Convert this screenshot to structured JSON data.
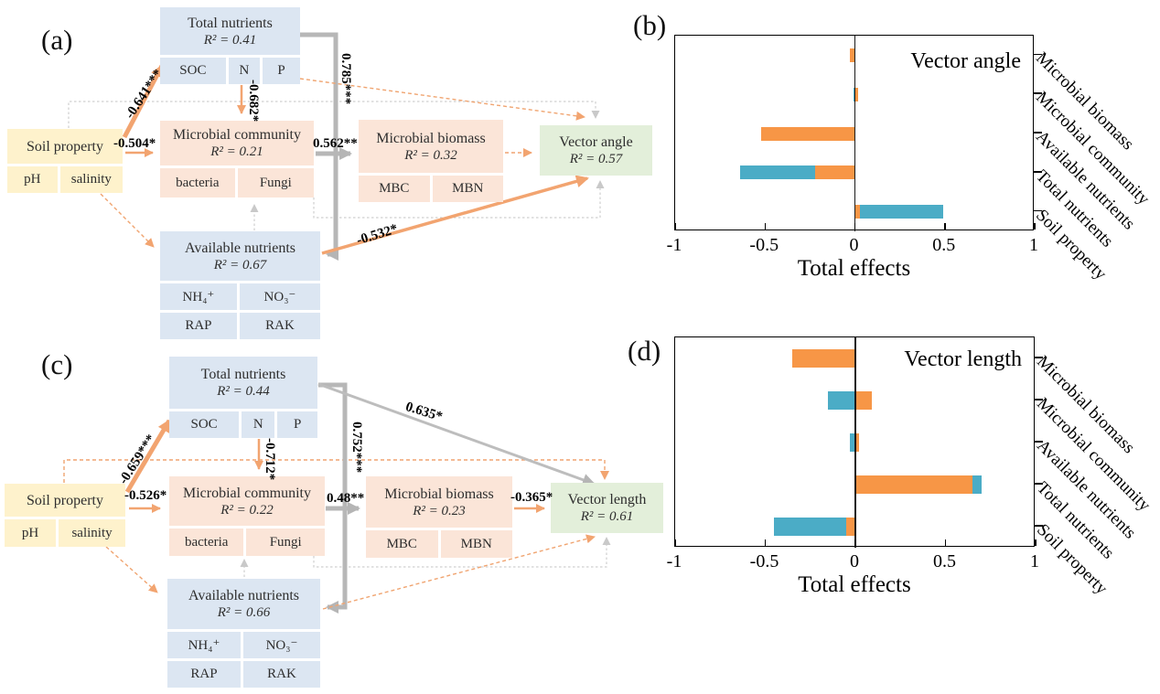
{
  "panel_labels": {
    "a": "(a)",
    "b": "(b)",
    "c": "(c)",
    "d": "(d)"
  },
  "sem_a": {
    "nodes": {
      "total_nutrients": {
        "title": "Total nutrients",
        "r2": "R² = 0.41",
        "items": [
          "SOC",
          "N",
          "P"
        ]
      },
      "soil_property": {
        "title": "Soil property",
        "items": [
          "pH",
          "salinity"
        ]
      },
      "microbial_community": {
        "title": "Microbial community",
        "r2": "R² = 0.21",
        "items": [
          "bacteria",
          "Fungi"
        ]
      },
      "microbial_biomass": {
        "title": "Microbial biomass",
        "r2": "R² = 0.32",
        "items": [
          "MBC",
          "MBN"
        ]
      },
      "available_nutrients": {
        "title": "Available nutrients",
        "r2": "R² = 0.67",
        "items": [
          "NH₄⁺",
          "NO₃⁻",
          "RAP",
          "RAK"
        ]
      },
      "vector_angle": {
        "title": "Vector angle",
        "r2": "R² = 0.57"
      }
    },
    "coefficients": {
      "soil_to_total": "-0.641***",
      "soil_to_community": "-0.504*",
      "n_to_community": "-0.682*",
      "total_to_available": "0.785***",
      "community_to_biomass": "0.562**",
      "available_to_vector": "-0.532*"
    }
  },
  "sem_c": {
    "nodes": {
      "total_nutrients": {
        "title": "Total nutrients",
        "r2": "R² = 0.44",
        "items": [
          "SOC",
          "N",
          "P"
        ]
      },
      "soil_property": {
        "title": "Soil property",
        "items": [
          "pH",
          "salinity"
        ]
      },
      "microbial_community": {
        "title": "Microbial community",
        "r2": "R² = 0.22",
        "items": [
          "bacteria",
          "Fungi"
        ]
      },
      "microbial_biomass": {
        "title": "Microbial biomass",
        "r2": "R² = 0.23",
        "items": [
          "MBC",
          "MBN"
        ]
      },
      "available_nutrients": {
        "title": "Available nutrients",
        "r2": "R² = 0.66",
        "items": [
          "NH₄⁺",
          "NO₃⁻",
          "RAP",
          "RAK"
        ]
      },
      "vector_length": {
        "title": "Vector length",
        "r2": "R² = 0.61"
      }
    },
    "coefficients": {
      "soil_to_total": "-0.659***",
      "soil_to_community": "-0.526*",
      "n_to_community": "-0.712*",
      "total_to_available": "0.752***",
      "community_to_biomass": "0.48**",
      "total_to_vector": "0.635*",
      "biomass_to_vector": "-0.365*"
    }
  },
  "chart_data": [
    {
      "id": "b",
      "type": "bar",
      "orientation": "horizontal_stacked",
      "title": "Vector angle",
      "xlabel": "Total effects",
      "xlim": [
        -1,
        1
      ],
      "xticks": [
        -1,
        -0.5,
        0,
        0.5,
        1
      ],
      "xtick_labels": [
        "-1",
        "-0.5",
        "0",
        "0.5",
        "1"
      ],
      "grid": false,
      "legend": false,
      "colors": {
        "orange": "#F79646",
        "blue": "#4BACC6"
      },
      "categories": [
        "Microbial biomass",
        "Microbial community",
        "Available nutrients",
        "Total nutrients",
        "Soil property"
      ],
      "rows": [
        {
          "category": "Microbial biomass",
          "segments": [
            {
              "color": "orange",
              "from": -0.03,
              "to": 0
            }
          ]
        },
        {
          "category": "Microbial community",
          "segments": [
            {
              "color": "blue",
              "from": -0.01,
              "to": 0
            },
            {
              "color": "orange",
              "from": 0,
              "to": 0.02
            }
          ]
        },
        {
          "category": "Available nutrients",
          "segments": [
            {
              "color": "orange",
              "from": -0.52,
              "to": 0
            }
          ]
        },
        {
          "category": "Total nutrients",
          "segments": [
            {
              "color": "blue",
              "from": -0.64,
              "to": -0.22
            },
            {
              "color": "orange",
              "from": -0.22,
              "to": 0
            }
          ]
        },
        {
          "category": "Soil property",
          "segments": [
            {
              "color": "orange",
              "from": 0,
              "to": 0.03
            },
            {
              "color": "blue",
              "from": 0.03,
              "to": 0.49
            }
          ]
        }
      ]
    },
    {
      "id": "d",
      "type": "bar",
      "orientation": "horizontal_stacked",
      "title": "Vector length",
      "xlabel": "Total effects",
      "xlim": [
        -1,
        1
      ],
      "xticks": [
        -1,
        -0.5,
        0,
        0.5,
        1
      ],
      "xtick_labels": [
        "-1",
        "-0.5",
        "0",
        "0.5",
        "1"
      ],
      "grid": false,
      "legend": false,
      "colors": {
        "orange": "#F79646",
        "blue": "#4BACC6"
      },
      "categories": [
        "Microbial biomass",
        "Microbial community",
        "Available nutrients",
        "Total nutrients",
        "Soil property"
      ],
      "rows": [
        {
          "category": "Microbial biomass",
          "segments": [
            {
              "color": "orange",
              "from": -0.35,
              "to": 0
            }
          ]
        },
        {
          "category": "Microbial community",
          "segments": [
            {
              "color": "blue",
              "from": -0.15,
              "to": 0
            },
            {
              "color": "orange",
              "from": 0,
              "to": 0.09
            }
          ]
        },
        {
          "category": "Available nutrients",
          "segments": [
            {
              "color": "blue",
              "from": -0.03,
              "to": 0
            },
            {
              "color": "orange",
              "from": 0,
              "to": 0.02
            }
          ]
        },
        {
          "category": "Total nutrients",
          "segments": [
            {
              "color": "orange",
              "from": 0,
              "to": 0.65
            },
            {
              "color": "blue",
              "from": 0.65,
              "to": 0.7
            }
          ]
        },
        {
          "category": "Soil property",
          "segments": [
            {
              "color": "blue",
              "from": -0.45,
              "to": -0.05
            },
            {
              "color": "orange",
              "from": -0.05,
              "to": 0
            }
          ]
        }
      ]
    }
  ]
}
